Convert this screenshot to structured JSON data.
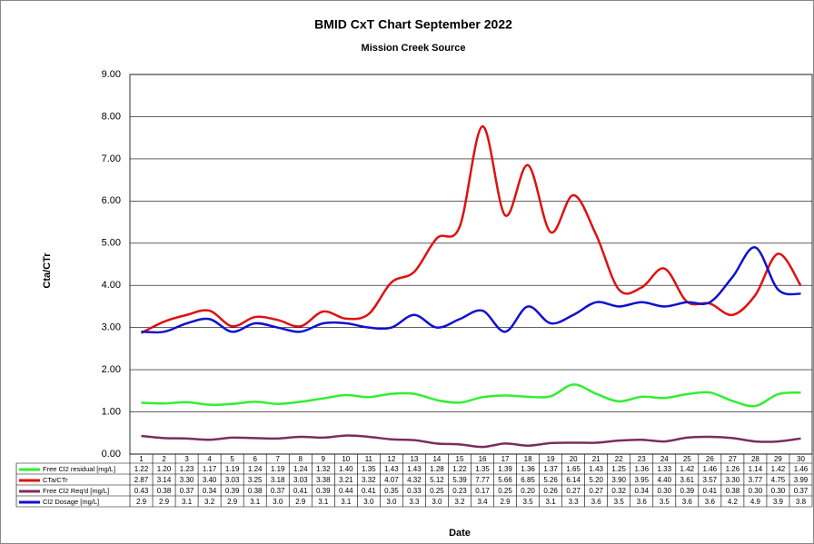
{
  "chart_data": {
    "type": "line",
    "title": "BMID CxT Chart September 2022",
    "subtitle": "Mission Creek Source",
    "y_label": "Cta/CTr",
    "x_label": "Date",
    "categories": [
      "1",
      "2",
      "3",
      "4",
      "5",
      "6",
      "7",
      "8",
      "9",
      "10",
      "11",
      "12",
      "13",
      "14",
      "15",
      "16",
      "17",
      "18",
      "19",
      "20",
      "21",
      "22",
      "23",
      "24",
      "25",
      "26",
      "27",
      "28",
      "29",
      "30"
    ],
    "ylim": [
      0,
      9
    ],
    "yticks": [
      {
        "value": 0,
        "label": "0.00"
      },
      {
        "value": 1,
        "label": "1.00"
      },
      {
        "value": 2,
        "label": "2.00"
      },
      {
        "value": 3,
        "label": "3.00"
      },
      {
        "value": 4,
        "label": "4.00"
      },
      {
        "value": 5,
        "label": "5.00"
      },
      {
        "value": 6,
        "label": "6.00"
      },
      {
        "value": 7,
        "label": "7.00"
      },
      {
        "value": 8,
        "label": "8.00"
      },
      {
        "value": 9,
        "label": "9.00"
      }
    ],
    "grid": true,
    "series": [
      {
        "name": "Free Cl2 residual [mg/L]",
        "color": "#33ee33",
        "values": [
          1.22,
          1.2,
          1.23,
          1.17,
          1.19,
          1.24,
          1.19,
          1.24,
          1.32,
          1.4,
          1.35,
          1.43,
          1.43,
          1.28,
          1.22,
          1.35,
          1.39,
          1.36,
          1.37,
          1.65,
          1.43,
          1.25,
          1.36,
          1.33,
          1.42,
          1.46,
          1.26,
          1.14,
          1.42,
          1.46
        ],
        "value_labels": [
          "1.22",
          "1.20",
          "1.23",
          "1.17",
          "1.19",
          "1.24",
          "1.19",
          "1.24",
          "1.32",
          "1.40",
          "1.35",
          "1.43",
          "1.43",
          "1.28",
          "1.22",
          "1.35",
          "1.39",
          "1.36",
          "1.37",
          "1.65",
          "1.43",
          "1.25",
          "1.36",
          "1.33",
          "1.42",
          "1.46",
          "1.26",
          "1.14",
          "1.42",
          "1.46"
        ]
      },
      {
        "name": "CTa/CTr",
        "color": "#e01010",
        "values": [
          2.87,
          3.14,
          3.3,
          3.4,
          3.03,
          3.25,
          3.18,
          3.03,
          3.38,
          3.21,
          3.32,
          4.07,
          4.32,
          5.12,
          5.39,
          7.77,
          5.66,
          6.85,
          5.26,
          6.14,
          5.2,
          3.9,
          3.95,
          4.4,
          3.61,
          3.57,
          3.3,
          3.77,
          4.75,
          3.99
        ],
        "value_labels": [
          "2.87",
          "3.14",
          "3.30",
          "3.40",
          "3.03",
          "3.25",
          "3.18",
          "3.03",
          "3.38",
          "3.21",
          "3.32",
          "4.07",
          "4.32",
          "5.12",
          "5.39",
          "7.77",
          "5.66",
          "6.85",
          "5.26",
          "6.14",
          "5.20",
          "3.90",
          "3.95",
          "4.40",
          "3.61",
          "3.57",
          "3.30",
          "3.77",
          "4.75",
          "3.99"
        ]
      },
      {
        "name": "Free Cl2 Req'd [mg/L]",
        "color": "#7b2d5f",
        "values": [
          0.43,
          0.38,
          0.37,
          0.34,
          0.39,
          0.38,
          0.37,
          0.41,
          0.39,
          0.44,
          0.41,
          0.35,
          0.33,
          0.25,
          0.23,
          0.17,
          0.25,
          0.2,
          0.26,
          0.27,
          0.27,
          0.32,
          0.34,
          0.3,
          0.39,
          0.41,
          0.38,
          0.3,
          0.3,
          0.37
        ],
        "value_labels": [
          "0.43",
          "0.38",
          "0.37",
          "0.34",
          "0.39",
          "0.38",
          "0.37",
          "0.41",
          "0.39",
          "0.44",
          "0.41",
          "0.35",
          "0.33",
          "0.25",
          "0.23",
          "0.17",
          "0.25",
          "0.20",
          "0.26",
          "0.27",
          "0.27",
          "0.32",
          "0.34",
          "0.30",
          "0.39",
          "0.41",
          "0.38",
          "0.30",
          "0.30",
          "0.37"
        ]
      },
      {
        "name": "Cl2 Dosage [mg/L]",
        "color": "#1010d0",
        "values": [
          2.9,
          2.9,
          3.1,
          3.2,
          2.9,
          3.1,
          3.0,
          2.9,
          3.1,
          3.1,
          3.0,
          3.0,
          3.3,
          3.0,
          3.2,
          3.4,
          2.9,
          3.5,
          3.1,
          3.3,
          3.6,
          3.5,
          3.6,
          3.5,
          3.6,
          3.6,
          4.2,
          4.9,
          3.9,
          3.8
        ],
        "value_labels": [
          "2.9",
          "2.9",
          "3.1",
          "3.2",
          "2.9",
          "3.1",
          "3.0",
          "2.9",
          "3.1",
          "3.1",
          "3.0",
          "3.0",
          "3.3",
          "3.0",
          "3.2",
          "3.4",
          "2.9",
          "3.5",
          "3.1",
          "3.3",
          "3.6",
          "3.5",
          "3.6",
          "3.5",
          "3.6",
          "3.6",
          "4.2",
          "4.9",
          "3.9",
          "3.8"
        ]
      }
    ]
  }
}
